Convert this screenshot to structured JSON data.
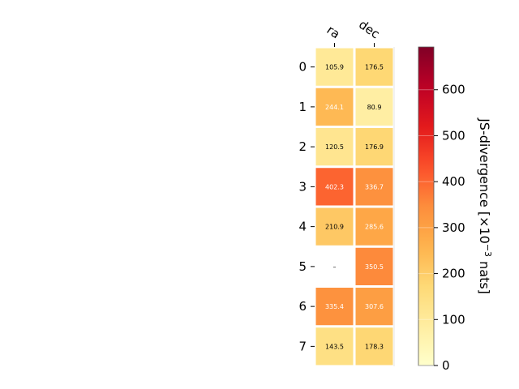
{
  "chart_data": {
    "type": "heatmap",
    "title": "",
    "xlabel": "",
    "ylabel": "",
    "columns": [
      "ra",
      "dec"
    ],
    "rows": [
      "0",
      "1",
      "2",
      "3",
      "4",
      "5",
      "6",
      "7"
    ],
    "values": [
      [
        105.9,
        176.5
      ],
      [
        244.1,
        80.9
      ],
      [
        120.5,
        176.9
      ],
      [
        402.3,
        336.7
      ],
      [
        210.9,
        285.6
      ],
      [
        null,
        350.5
      ],
      [
        335.4,
        307.6
      ],
      [
        143.5,
        178.3
      ]
    ],
    "cell_labels": [
      [
        "105.9",
        "176.5"
      ],
      [
        "244.1",
        "80.9"
      ],
      [
        "120.5",
        "176.9"
      ],
      [
        "402.3",
        "336.7"
      ],
      [
        "210.9",
        "285.6"
      ],
      [
        "–",
        "350.5"
      ],
      [
        "335.4",
        "307.6"
      ],
      [
        "143.5",
        "178.3"
      ]
    ],
    "colorbar": {
      "label_main": "JS-divergence [×10",
      "label_exp": "−3",
      "label_end": " nats]",
      "vmin": 0,
      "vmax": 693,
      "ticks": [
        0,
        100,
        200,
        300,
        400,
        500,
        600
      ],
      "tick_labels": [
        "0",
        "100",
        "200",
        "300",
        "400",
        "500",
        "600"
      ],
      "colormap": "YlOrRd"
    },
    "grid": false
  }
}
